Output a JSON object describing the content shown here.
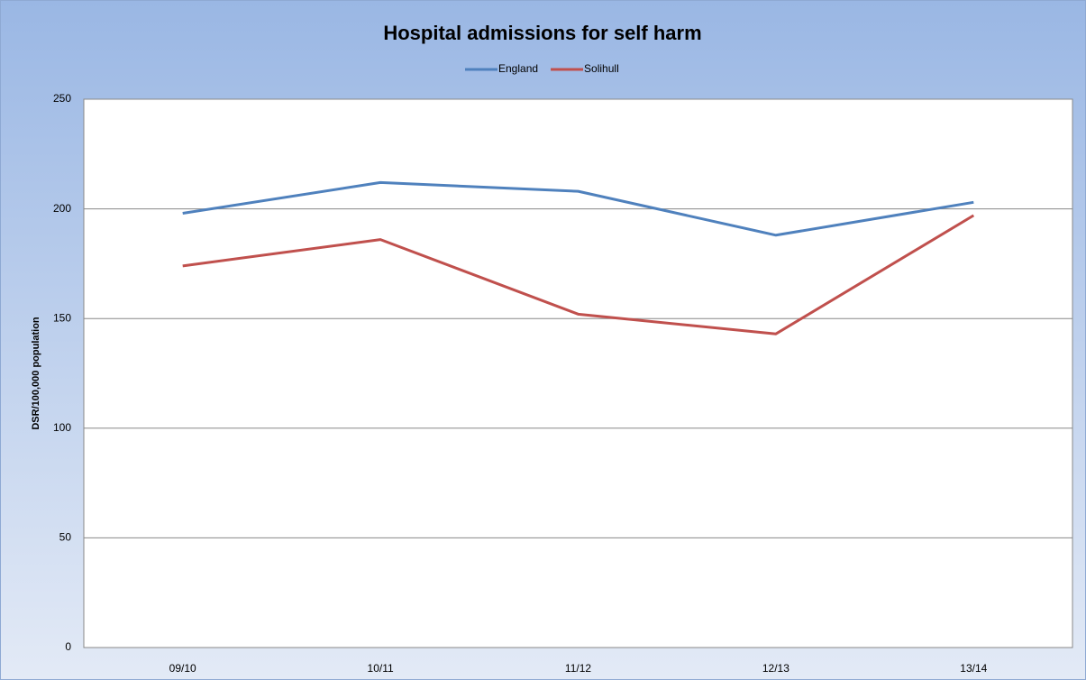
{
  "chart_data": {
    "type": "line",
    "title": "Hospital admissions for self harm",
    "y_label": "DSR/100,000 population",
    "categories": [
      "09/10",
      "10/11",
      "11/12",
      "12/13",
      "13/14"
    ],
    "series": [
      {
        "name": "England",
        "color": "#4f81bd",
        "values": [
          198,
          212,
          208,
          188,
          203
        ]
      },
      {
        "name": "Solihull",
        "color": "#c0504d",
        "values": [
          174,
          186,
          152,
          143,
          197
        ]
      }
    ],
    "ylim": [
      0,
      250
    ],
    "yticks": [
      0,
      50,
      100,
      150,
      200,
      250
    ],
    "grid": true,
    "legend": "top"
  }
}
